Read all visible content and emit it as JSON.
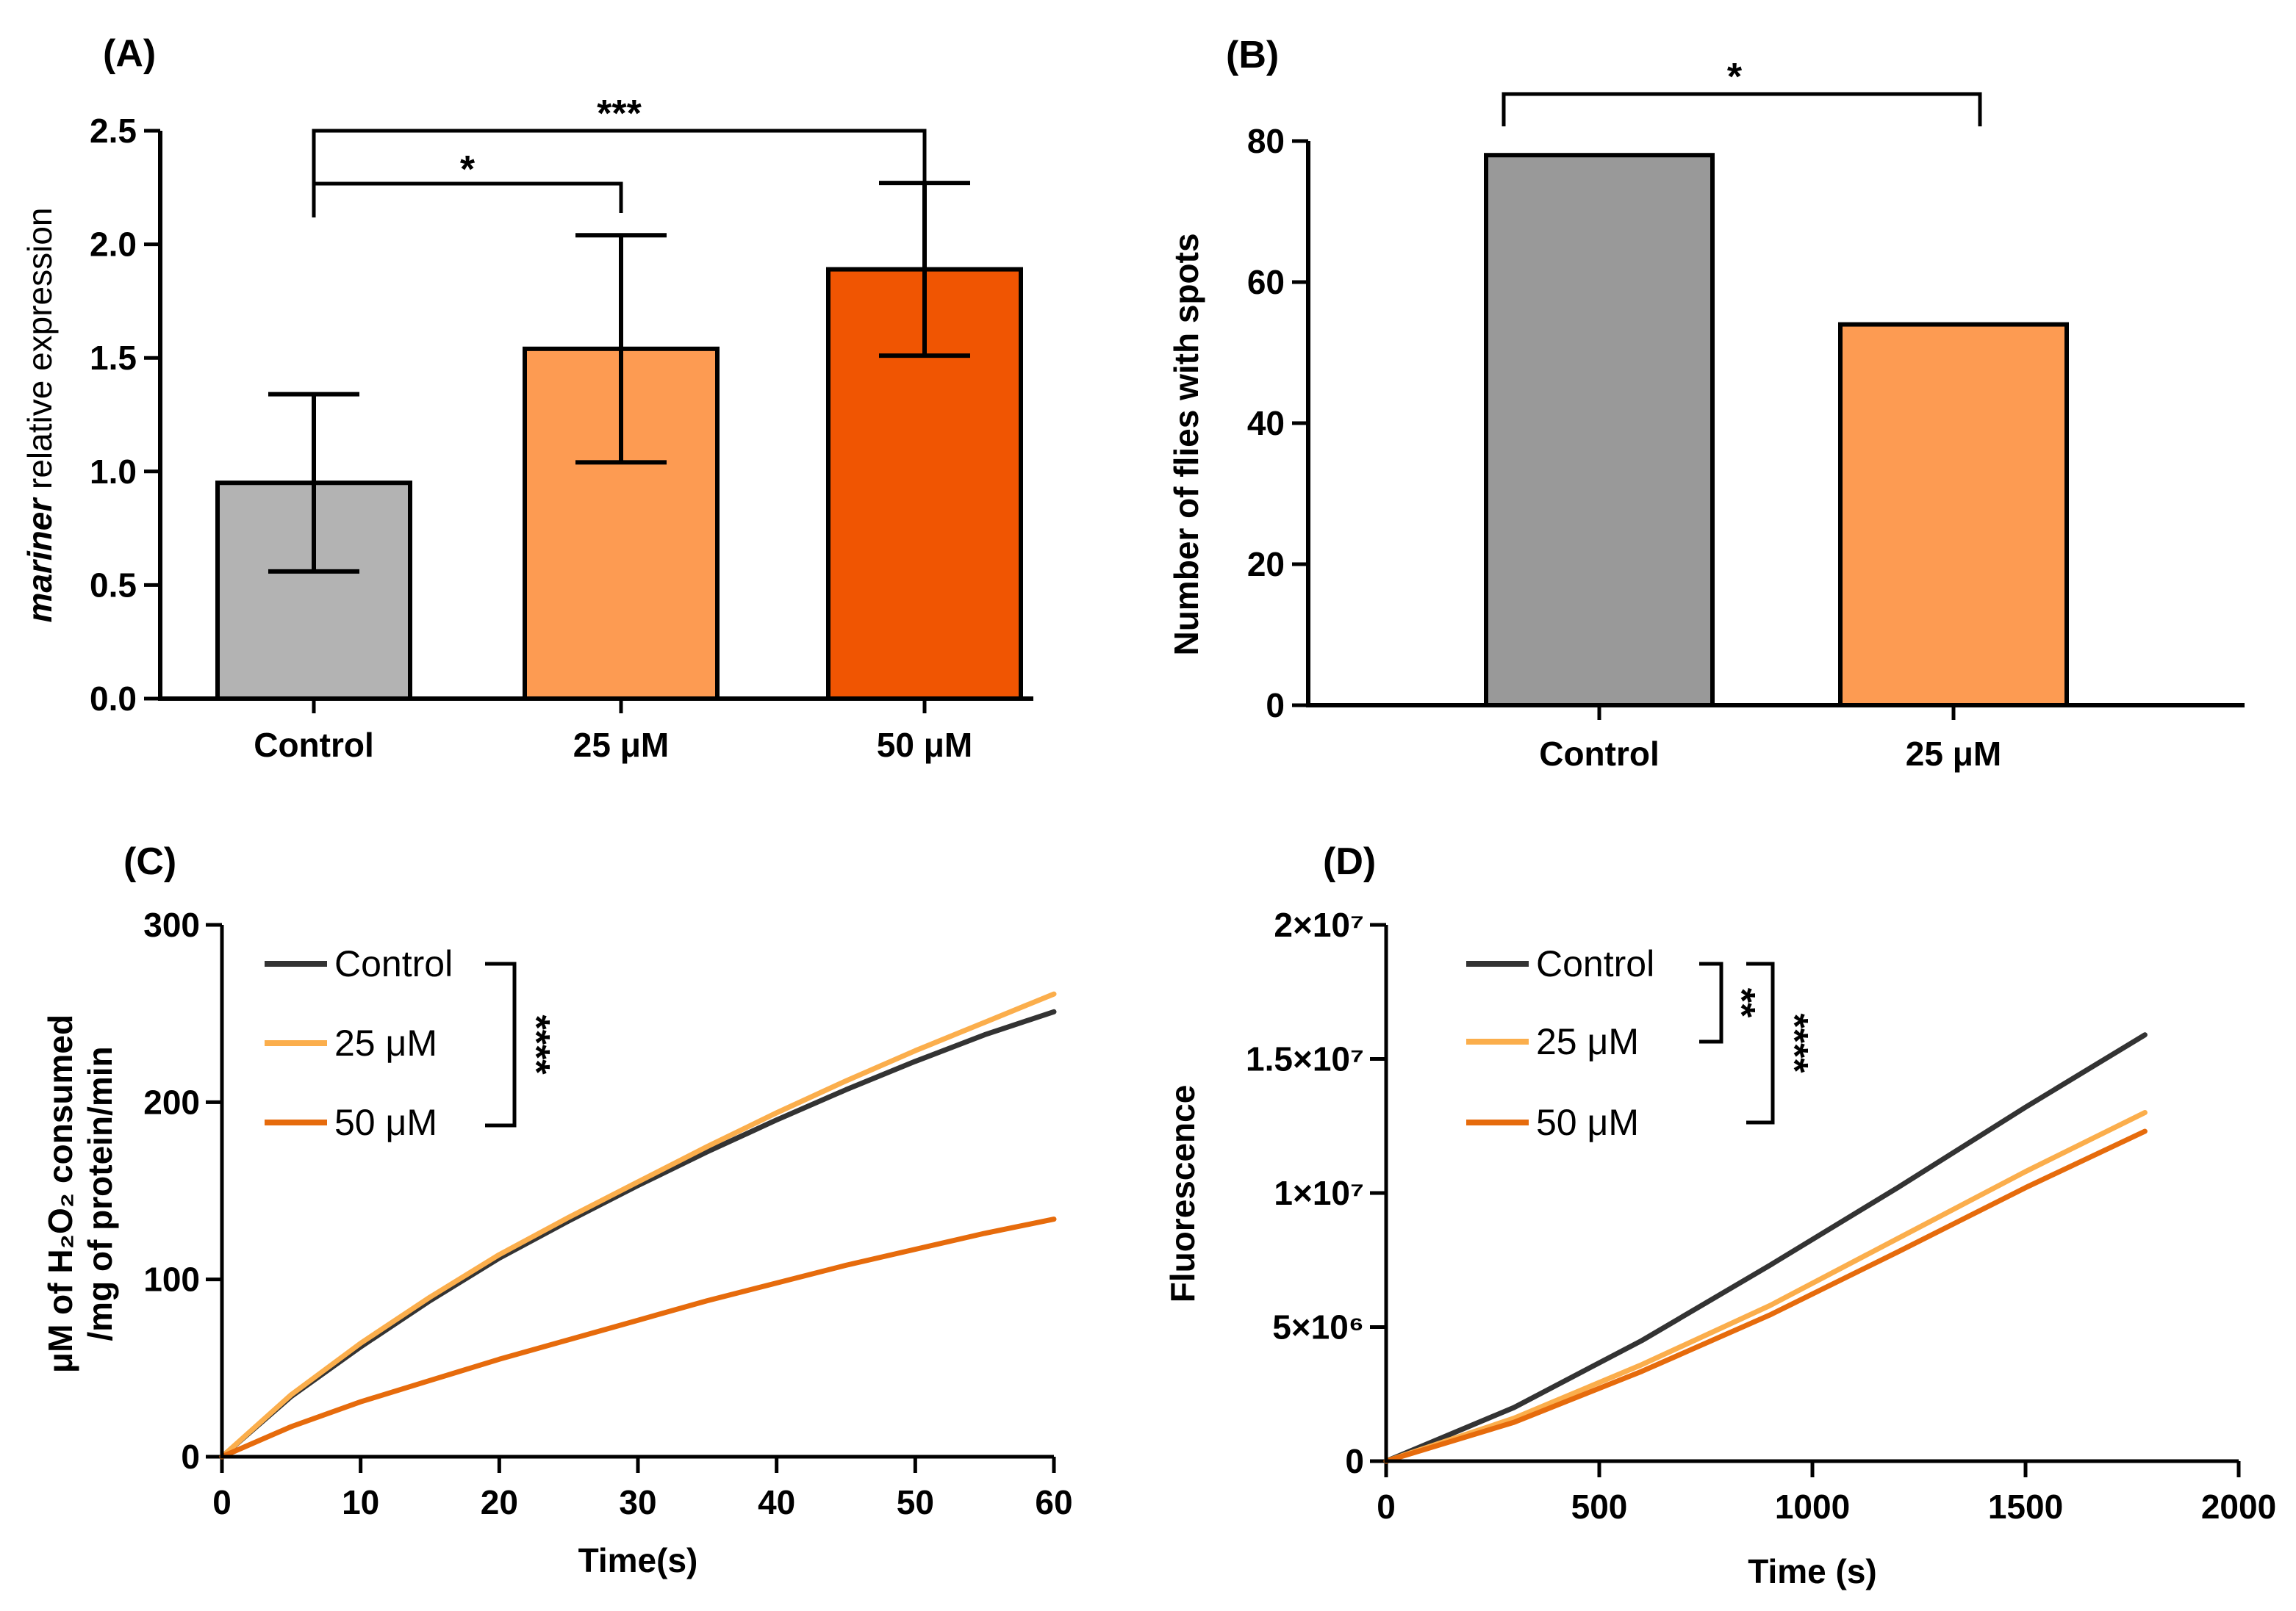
{
  "chart_data": [
    {
      "panel": "(A)",
      "type": "bar",
      "categories": [
        "Control",
        "25 μM",
        "50 μM"
      ],
      "values": [
        0.95,
        1.54,
        1.89
      ],
      "error": [
        0.39,
        0.5,
        0.38
      ],
      "colors": [
        "#b3b3b3",
        "#fd9b52",
        "#f05502"
      ],
      "ylabel_italic": "mariner",
      "ylabel": " relative expression",
      "ylim": [
        0,
        2.5
      ],
      "yticks": [
        "0.0",
        "0.5",
        "1.0",
        "1.5",
        "2.0",
        "2.5"
      ],
      "significance": [
        {
          "from": "Control",
          "to": "25 μM",
          "label": "*"
        },
        {
          "from": "Control",
          "to": "50 μM",
          "label": "***"
        }
      ]
    },
    {
      "panel": "(B)",
      "type": "bar",
      "categories": [
        "Control",
        "25 μM"
      ],
      "values": [
        78,
        54
      ],
      "colors": [
        "#999999",
        "#fd9b52"
      ],
      "ylabel": "Number of flies with spots",
      "ylim": [
        0,
        80
      ],
      "yticks": [
        "0",
        "20",
        "40",
        "60",
        "80"
      ],
      "significance": [
        {
          "from": "Control",
          "to": "25 μM",
          "label": "*"
        }
      ]
    },
    {
      "panel": "(C)",
      "type": "line",
      "x": [
        0,
        5,
        10,
        15,
        20,
        25,
        30,
        35,
        40,
        45,
        50,
        55,
        60
      ],
      "series": [
        {
          "name": "Control",
          "color": "#333333",
          "values": [
            0,
            34,
            62,
            88,
            112,
            133,
            153,
            172,
            190,
            207,
            223,
            238,
            251
          ]
        },
        {
          "name": "25 μM",
          "color": "#fbae4c",
          "values": [
            0,
            35,
            64,
            90,
            114,
            135,
            155,
            175,
            194,
            212,
            229,
            245,
            261
          ]
        },
        {
          "name": "50 μM",
          "color": "#e66b0c",
          "values": [
            0,
            17,
            31,
            43,
            55,
            66,
            77,
            88,
            98,
            108,
            117,
            126,
            134
          ]
        }
      ],
      "ylabel_line1": "μM of H₂O₂ consumed",
      "ylabel_line2": "/mg of protein/min",
      "xlabel": "Time(s)",
      "xlim": [
        0,
        60
      ],
      "ylim": [
        0,
        300
      ],
      "xticks": [
        "0",
        "10",
        "20",
        "30",
        "40",
        "50",
        "60"
      ],
      "yticks": [
        "0",
        "100",
        "200",
        "300"
      ],
      "significance": [
        {
          "series": [
            "Control",
            "25 μM",
            "50 μM"
          ],
          "label": "****"
        }
      ]
    },
    {
      "panel": "(D)",
      "type": "line",
      "x": [
        0,
        300,
        600,
        900,
        1200,
        1500,
        1780
      ],
      "series": [
        {
          "name": "Control",
          "color": "#333333",
          "values": [
            0,
            2000000,
            4500000,
            7300000,
            10200000,
            13200000,
            15900000
          ]
        },
        {
          "name": "25 μM",
          "color": "#fbae4c",
          "values": [
            0,
            1600000,
            3600000,
            5800000,
            8300000,
            10800000,
            13000000
          ]
        },
        {
          "name": "50 μM",
          "color": "#e66b0c",
          "values": [
            0,
            1450000,
            3350000,
            5450000,
            7800000,
            10200000,
            12300000
          ]
        }
      ],
      "ylabel": "Fluorescence",
      "xlabel": "Time (s)",
      "xlim": [
        0,
        2000
      ],
      "ylim": [
        0,
        20000000
      ],
      "xticks": [
        "0",
        "500",
        "1000",
        "1500",
        "2000"
      ],
      "yticks": [
        "0",
        "5×10⁶",
        "1×10⁷",
        "1.5×10⁷",
        "2×10⁷"
      ],
      "significance": [
        {
          "series": [
            "Control",
            "25 μM"
          ],
          "label": "**"
        },
        {
          "series": [
            "Control",
            "50 μM"
          ],
          "label": "****"
        }
      ]
    }
  ]
}
